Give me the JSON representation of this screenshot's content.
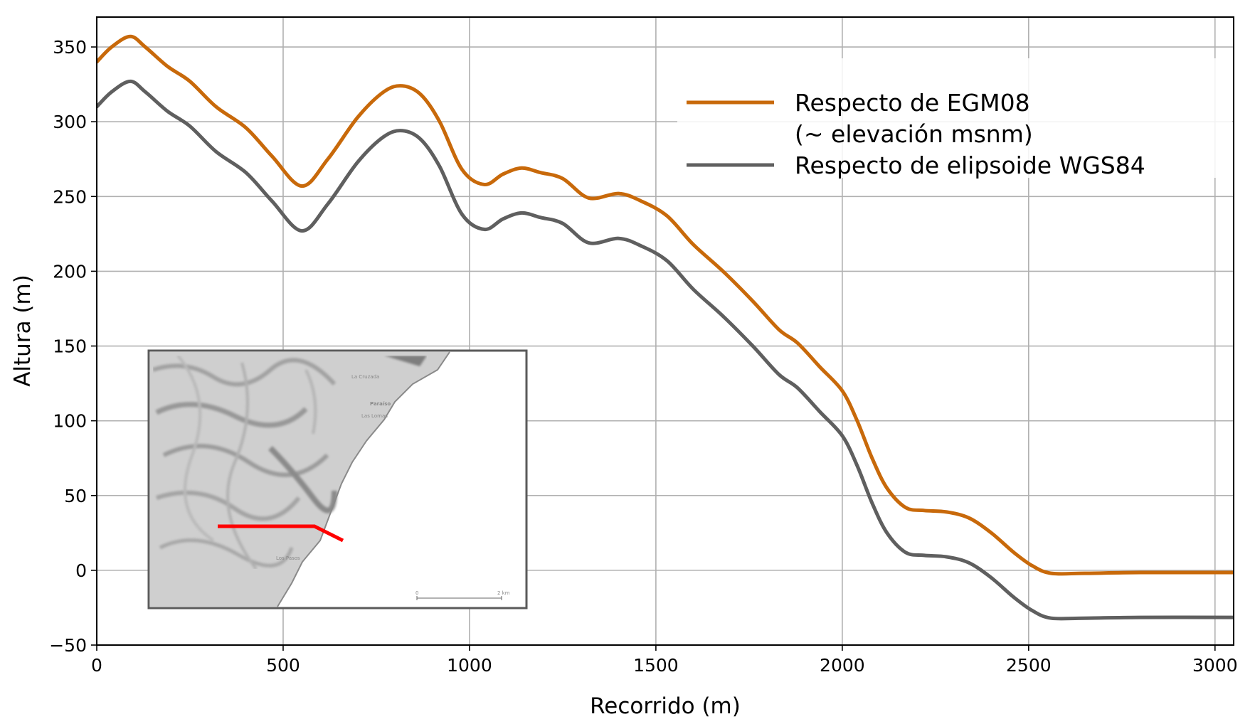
{
  "chart_data": {
    "type": "line",
    "title": "",
    "xlabel": "Recorrido (m)",
    "ylabel": "Altura (m)",
    "xlim": [
      0,
      3050
    ],
    "ylim": [
      -50,
      370
    ],
    "xticks": [
      0,
      500,
      1000,
      1500,
      2000,
      2500,
      3000
    ],
    "yticks": [
      -50,
      0,
      50,
      100,
      150,
      200,
      250,
      300,
      350
    ],
    "xtick_labels": [
      "0",
      "500",
      "1000",
      "1500",
      "2000",
      "2500",
      "3000"
    ],
    "ytick_labels": [
      "−50",
      "0",
      "50",
      "100",
      "150",
      "200",
      "250",
      "300",
      "350"
    ],
    "grid": true,
    "legend_position": "top-right",
    "series": [
      {
        "name": "Respecto de EGM08\n(~ elevación msnm)",
        "legend_lines": [
          "Respecto de EGM08",
          "(~ elevación msnm)"
        ],
        "color": "#c8690a",
        "x": [
          0,
          40,
          90,
          130,
          190,
          250,
          320,
          400,
          470,
          550,
          620,
          700,
          770,
          820,
          870,
          920,
          980,
          1040,
          1090,
          1140,
          1190,
          1250,
          1320,
          1400,
          1460,
          1530,
          1600,
          1680,
          1760,
          1830,
          1880,
          1940,
          2000,
          2040,
          2080,
          2120,
          2170,
          2220,
          2280,
          2340,
          2400,
          2460,
          2510,
          2560,
          2650,
          2800,
          3050
        ],
        "values": [
          340,
          350,
          357,
          350,
          337,
          327,
          310,
          296,
          277,
          257,
          275,
          303,
          320,
          324,
          318,
          300,
          268,
          258,
          265,
          269,
          266,
          262,
          249,
          252,
          247,
          237,
          218,
          200,
          180,
          161,
          152,
          136,
          120,
          100,
          75,
          55,
          42,
          40,
          39,
          35,
          25,
          12,
          3,
          -2,
          -2,
          -1.5,
          -1.5
        ]
      },
      {
        "name": "Respecto de elipsoide WGS84",
        "legend_lines": [
          "Respecto de elipsoide WGS84"
        ],
        "color": "#5f5f5f",
        "x": [
          0,
          40,
          90,
          130,
          190,
          250,
          320,
          400,
          470,
          550,
          620,
          700,
          770,
          820,
          870,
          920,
          980,
          1040,
          1090,
          1140,
          1190,
          1250,
          1320,
          1400,
          1460,
          1530,
          1600,
          1680,
          1760,
          1830,
          1880,
          1940,
          2000,
          2040,
          2080,
          2120,
          2170,
          2220,
          2280,
          2340,
          2400,
          2460,
          2510,
          2560,
          2650,
          2800,
          3050
        ],
        "values": [
          310,
          320,
          327,
          320,
          307,
          297,
          280,
          266,
          247,
          227,
          245,
          273,
          290,
          294,
          288,
          270,
          238,
          228,
          235,
          239,
          236,
          232,
          219,
          222,
          217,
          207,
          188,
          170,
          150,
          131,
          122,
          106,
          90,
          70,
          45,
          25,
          12,
          10,
          9,
          5,
          -5,
          -18,
          -27,
          -32,
          -32,
          -31.5,
          -31.5
        ]
      }
    ],
    "inset": {
      "description_colors": {
        "track": "#ff0000",
        "terrain": "#c8c8c8"
      },
      "place_labels": [
        "La Cruzada",
        "Paraíso",
        "Las Lomas",
        "Los Pasos"
      ],
      "scale_labels": [
        "0",
        "2 km"
      ]
    }
  }
}
